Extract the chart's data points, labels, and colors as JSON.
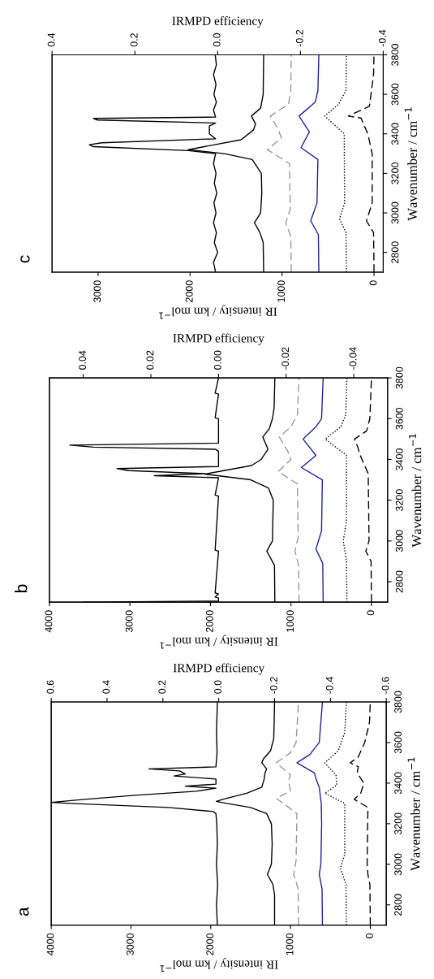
{
  "chart_data": [
    {
      "type": "line",
      "title": "c",
      "ylabel": "Wavenumber / cm$^{−1}$",
      "xlabel": "IR intensity / km mol$^{−1}$",
      "x2label": "IRMPD efficiency",
      "ylim": [
        2700,
        3800
      ],
      "yticks": [
        2800,
        3000,
        3200,
        3400,
        3600,
        3800
      ],
      "xlim": [
        3500,
        -100
      ],
      "xticks": [
        3000,
        2000,
        1000,
        0
      ],
      "x2lim": [
        0.4,
        -0.4
      ],
      "x2ticks": [
        {
          "value": 0.4,
          "label": "0.4"
        },
        {
          "value": 0.2,
          "label": "0.2"
        },
        {
          "value": 0,
          "label": "0.0"
        },
        {
          "value": -0.2,
          "label": "-0.2"
        },
        {
          "value": -0.4,
          "label": "-0.4"
        }
      ],
      "series": [
        {
          "color": "#000000",
          "axis": "x2",
          "line_style": "solid",
          "values": [
            2700,
            2750,
            2800,
            2850,
            2900,
            2950,
            3000,
            3050,
            3100,
            3150,
            3200,
            3250,
            3300,
            3315,
            3335,
            3345,
            3355,
            3375,
            3400,
            3440,
            3455,
            3470,
            3478,
            3485,
            3520,
            3560,
            3600,
            3650,
            3700,
            3750,
            3800
          ],
          "x": [
            0.005,
            0.01,
            0.0,
            0.008,
            0.003,
            0.01,
            0.004,
            0.009,
            0.002,
            0.008,
            0.004,
            0.01,
            0.005,
            0.07,
            0.3,
            0.31,
            0.28,
            0.005,
            0.02,
            0.02,
            0.005,
            0.29,
            0.3,
            0.005,
            0.01,
            0.003,
            0.009,
            0.004,
            0.01,
            0.003,
            0.006
          ]
        },
        {
          "color": "#000000",
          "line_style": "solid",
          "values": [
            2700,
            2850,
            2900,
            2950,
            3000,
            3100,
            3200,
            3270,
            3300,
            3320,
            3370,
            3420,
            3450,
            3490,
            3530,
            3600,
            3800
          ],
          "x": [
            1200,
            1205,
            1240,
            1300,
            1233,
            1220,
            1225,
            1324,
            1627,
            2020,
            1445,
            1310,
            1288,
            1333,
            1233,
            1205,
            1200
          ]
        },
        {
          "color": "#999999",
          "line_style": "dashed",
          "values": [
            2700,
            2880,
            2950,
            3020,
            3250,
            3320,
            3380,
            3430,
            3490,
            3550,
            3620,
            3800
          ],
          "x": [
            900,
            905,
            960,
            910,
            920,
            1160,
            1006,
            1050,
            1127,
            930,
            905,
            900
          ]
        },
        {
          "color": "#22229a",
          "line_style": "solid",
          "values": [
            2700,
            2890,
            2960,
            3050,
            3270,
            3330,
            3410,
            3490,
            3560,
            3620,
            3800
          ],
          "x": [
            600,
            605,
            688,
            620,
            610,
            794,
            703,
            815,
            640,
            610,
            600
          ]
        },
        {
          "color": "#000000",
          "line_style": "dotted",
          "values": [
            2700,
            2900,
            2970,
            3050,
            3400,
            3490,
            3550,
            3620,
            3800
          ],
          "x": [
            300,
            305,
            375,
            320,
            324,
            536,
            385,
            305,
            300
          ]
        },
        {
          "color": "#000000",
          "line_style": "dashed",
          "values": [
            2700,
            2900,
            2960,
            3050,
            3300,
            3400,
            3480,
            3490,
            3540,
            3700,
            3800
          ],
          "x": [
            0,
            5,
            82,
            20,
            20,
            67,
            142,
            279,
            50,
            5,
            0
          ]
        }
      ]
    },
    {
      "type": "line",
      "title": "b",
      "ylabel": "Wavenumber / cm$^{−1}$",
      "xlabel": "IR intensity / km mol$^{−1}$",
      "x2label": "IRMPD efficiency",
      "ylim": [
        2700,
        3800
      ],
      "yticks": [
        2800,
        3000,
        3200,
        3400,
        3600,
        3800
      ],
      "xlim": [
        4000,
        -200
      ],
      "xticks": [
        4000,
        3000,
        2000,
        1000,
        0
      ],
      "x2lim": [
        0.05,
        -0.05
      ],
      "x2ticks": [
        {
          "value": 0.04,
          "label": "0.04"
        },
        {
          "value": 0.02,
          "label": "0.02"
        },
        {
          "value": 0,
          "label": "0.00"
        },
        {
          "value": -0.02,
          "label": "-0.02"
        },
        {
          "value": -0.04,
          "label": "-0.04"
        }
      ],
      "series": [
        {
          "color": "#000000",
          "axis": "x2",
          "line_style": "solid",
          "values": [
            2700,
            2705,
            2720,
            2725,
            2740,
            2745,
            2950,
            2955,
            3220,
            3225,
            3310,
            3320,
            3330,
            3345,
            3355,
            3365,
            3440,
            3450,
            3460,
            3470,
            3480,
            3600,
            3605,
            3720,
            3725,
            3800
          ],
          "x": [
            0.04,
            0.0,
            0.0,
            0.001,
            0.0,
            0.001,
            0.0,
            0.001,
            0.0,
            0.001,
            0.0,
            0.019,
            0.004,
            0.0265,
            0.03,
            0.0,
            0.0,
            0.001,
            0.037,
            0.044,
            0.0,
            0.0,
            0.001,
            0.0,
            0.001,
            0.0
          ]
        },
        {
          "color": "#000000",
          "line_style": "solid",
          "values": [
            2700,
            2880,
            2950,
            3000,
            3200,
            3260,
            3300,
            3328,
            3370,
            3400,
            3450,
            3510,
            3550,
            3600,
            3650,
            3800
          ],
          "x": [
            1200,
            1205,
            1300,
            1230,
            1220,
            1280,
            1500,
            2070,
            1490,
            1370,
            1285,
            1350,
            1270,
            1230,
            1210,
            1200
          ]
        },
        {
          "color": "#999999",
          "line_style": "dashed",
          "values": [
            2700,
            2880,
            2950,
            3020,
            3280,
            3340,
            3400,
            3440,
            3510,
            3560,
            3620,
            3800
          ],
          "x": [
            900,
            905,
            950,
            910,
            920,
            1160,
            1000,
            1040,
            1145,
            1000,
            920,
            900
          ]
        },
        {
          "color": "#22229a",
          "line_style": "solid",
          "values": [
            2700,
            2890,
            2960,
            3050,
            3300,
            3360,
            3420,
            3500,
            3560,
            3600,
            3800
          ],
          "x": [
            600,
            605,
            690,
            620,
            610,
            870,
            690,
            850,
            690,
            620,
            600
          ]
        },
        {
          "color": "#000000",
          "line_style": "dotted",
          "values": [
            2700,
            2900,
            3000,
            3100,
            3420,
            3500,
            3560,
            3620,
            3800
          ],
          "x": [
            305,
            310,
            350,
            310,
            310,
            575,
            380,
            320,
            305
          ]
        },
        {
          "color": "#000000",
          "line_style": "dashed",
          "values": [
            2700,
            2900,
            2950,
            3000,
            3330,
            3420,
            3460,
            3500,
            3540,
            3600,
            3800
          ],
          "x": [
            0,
            5,
            70,
            30,
            40,
            140,
            170,
            210,
            60,
            20,
            0
          ]
        }
      ]
    },
    {
      "type": "line",
      "title": "a",
      "ylabel": "Wavenumber / cm$^{−1}$",
      "xlabel": "IR intensity / km mol$^{−1}$",
      "x2label": "IRMPD efficiency",
      "ylim": [
        2700,
        3800
      ],
      "yticks": [
        2800,
        3000,
        3200,
        3400,
        3600,
        3800
      ],
      "xlim": [
        4000,
        -200
      ],
      "xticks": [
        4000,
        3000,
        2000,
        1000,
        0
      ],
      "x2lim": [
        0.6,
        -0.6
      ],
      "x2ticks": [
        {
          "value": 0.6,
          "label": "0.6"
        },
        {
          "value": 0.4,
          "label": "0.4"
        },
        {
          "value": 0.2,
          "label": "0.2"
        },
        {
          "value": 0,
          "label": "0.0"
        },
        {
          "value": -0.2,
          "label": "-0.2"
        },
        {
          "value": -0.4,
          "label": "-0.4"
        },
        {
          "value": -0.6,
          "label": "-0.6"
        }
      ],
      "series": [
        {
          "color": "#000000",
          "axis": "x2",
          "line_style": "solid",
          "values": [
            2700,
            2800,
            2900,
            3000,
            3100,
            3200,
            3250,
            3260,
            3280,
            3300,
            3305,
            3320,
            3340,
            3360,
            3375,
            3385,
            3395,
            3420,
            3435,
            3445,
            3460,
            3470,
            3480,
            3550,
            3650,
            3800
          ],
          "x": [
            0.005,
            0.008,
            0.004,
            0.008,
            0.005,
            0.007,
            0.01,
            0.02,
            0.18,
            0.53,
            0.6,
            0.48,
            0.3,
            0.08,
            0.01,
            0.12,
            0.01,
            0.01,
            0.16,
            0.12,
            0.14,
            0.25,
            0.01,
            0.006,
            0.008,
            0.005
          ]
        },
        {
          "color": "#000000",
          "line_style": "solid",
          "values": [
            2700,
            2850,
            2900,
            2950,
            3000,
            3100,
            3200,
            3250,
            3280,
            3300,
            3310,
            3320,
            3350,
            3380,
            3420,
            3450,
            3470,
            3500,
            3520,
            3560,
            3620,
            3800
          ],
          "x": [
            1200,
            1200,
            1220,
            1290,
            1240,
            1230,
            1240,
            1300,
            1500,
            1800,
            1930,
            1850,
            1550,
            1360,
            1330,
            1320,
            1300,
            1360,
            1340,
            1250,
            1210,
            1200
          ]
        },
        {
          "color": "#999999",
          "line_style": "dashed",
          "values": [
            2700,
            2880,
            2950,
            3020,
            3250,
            3326,
            3360,
            3410,
            3440,
            3500,
            3550,
            3600,
            3800
          ],
          "x": [
            900,
            905,
            960,
            930,
            920,
            1180,
            1000,
            1025,
            1000,
            1180,
            1000,
            930,
            900
          ]
        },
        {
          "color": "#22229a",
          "line_style": "solid",
          "values": [
            2700,
            2880,
            2950,
            3000,
            3200,
            3300,
            3380,
            3420,
            3450,
            3500,
            3540,
            3600,
            3800
          ],
          "x": [
            600,
            605,
            640,
            620,
            610,
            615,
            640,
            680,
            700,
            920,
            760,
            640,
            600
          ]
        },
        {
          "color": "#000000",
          "line_style": "dotted",
          "values": [
            2700,
            2900,
            2980,
            3050,
            3300,
            3350,
            3390,
            3440,
            3500,
            3560,
            3650,
            3800
          ],
          "x": [
            300,
            305,
            375,
            320,
            320,
            570,
            420,
            430,
            570,
            400,
            320,
            300
          ]
        },
        {
          "color": "#000000",
          "line_style": "dashed",
          "values": [
            2700,
            2900,
            2950,
            3000,
            3280,
            3320,
            3350,
            3400,
            3450,
            3480,
            3500,
            3530,
            3600,
            3700,
            3800
          ],
          "x": [
            0,
            5,
            30,
            40,
            30,
            200,
            120,
            80,
            165,
            150,
            250,
            150,
            70,
            10,
            0
          ]
        }
      ]
    }
  ]
}
